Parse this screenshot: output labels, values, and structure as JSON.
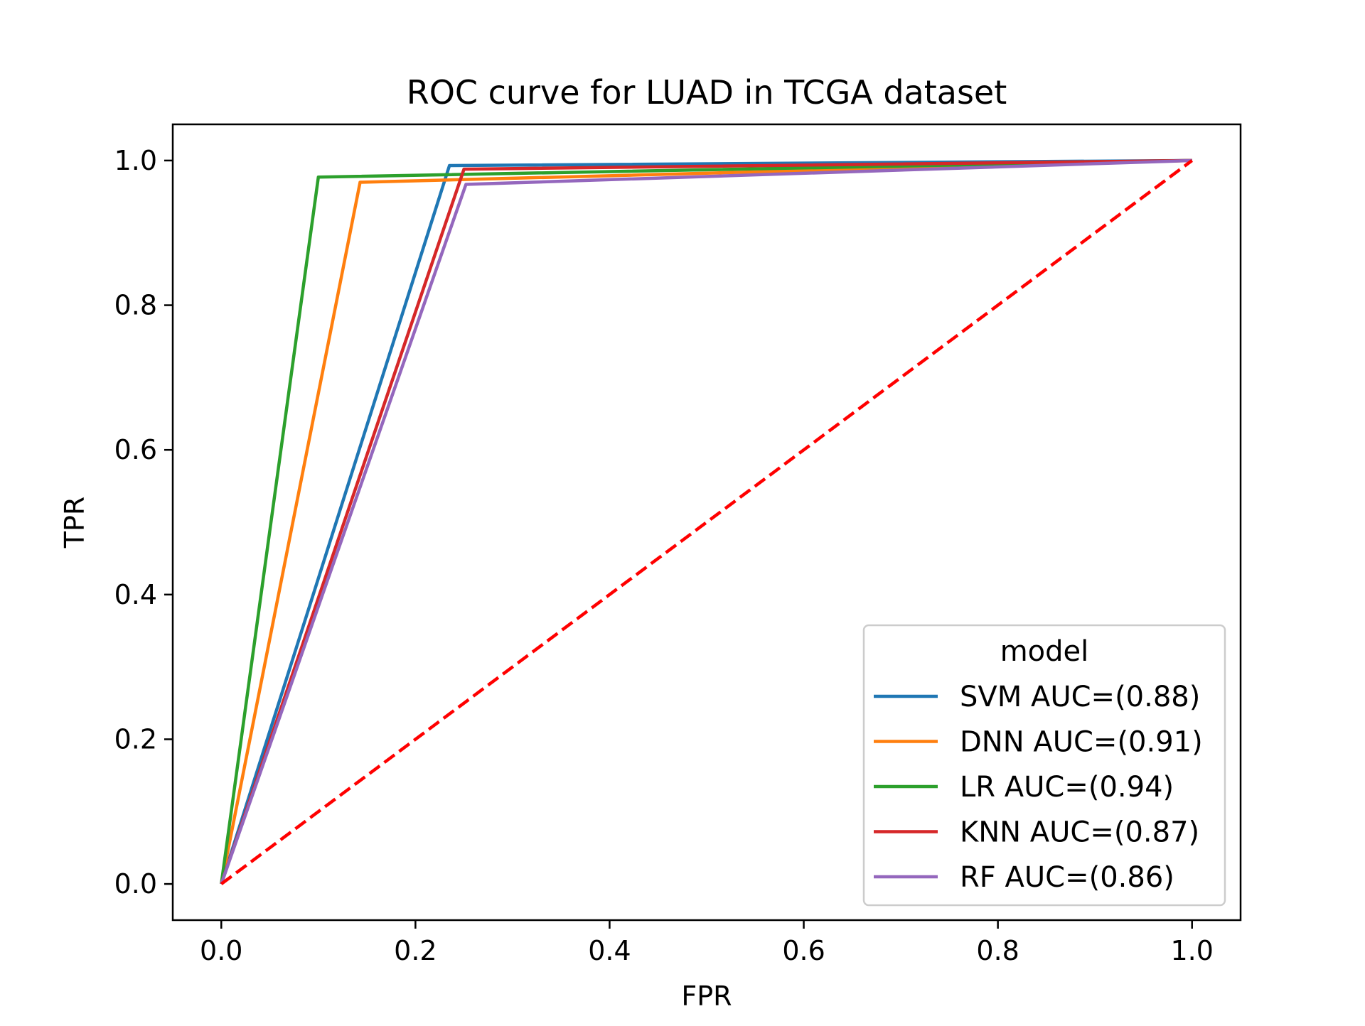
{
  "chart_data": {
    "type": "line",
    "title": "ROC curve for LUAD in TCGA dataset",
    "xlabel": "FPR",
    "ylabel": "TPR",
    "xlim": [
      -0.05,
      1.05
    ],
    "ylim": [
      -0.05,
      1.05
    ],
    "xticks": [
      0.0,
      0.2,
      0.4,
      0.6,
      0.8,
      1.0
    ],
    "xtick_labels": [
      "0.0",
      "0.2",
      "0.4",
      "0.6",
      "0.8",
      "1.0"
    ],
    "yticks": [
      0.0,
      0.2,
      0.4,
      0.6,
      0.8,
      1.0
    ],
    "ytick_labels": [
      "0.0",
      "0.2",
      "0.4",
      "0.6",
      "0.8",
      "1.0"
    ],
    "grid": false,
    "legend": {
      "title": "model",
      "placement": "lower right"
    },
    "series": [
      {
        "name": "SVM AUC=(0.88)",
        "color": "#1f77b4",
        "x": [
          0.0,
          0.235,
          1.0
        ],
        "y": [
          0.0,
          0.993,
          1.0
        ]
      },
      {
        "name": "DNN AUC=(0.91)",
        "color": "#ff7f0e",
        "x": [
          0.0,
          0.143,
          1.0
        ],
        "y": [
          0.0,
          0.97,
          1.0
        ]
      },
      {
        "name": "LR AUC=(0.94)",
        "color": "#2ca02c",
        "x": [
          0.0,
          0.1,
          1.0
        ],
        "y": [
          0.0,
          0.977,
          1.0
        ]
      },
      {
        "name": "KNN AUC=(0.87)",
        "color": "#d62728",
        "x": [
          0.0,
          0.25,
          1.0
        ],
        "y": [
          0.0,
          0.988,
          1.0
        ]
      },
      {
        "name": "RF AUC=(0.86)",
        "color": "#9467bd",
        "x": [
          0.0,
          0.252,
          1.0
        ],
        "y": [
          0.0,
          0.967,
          1.0
        ]
      }
    ],
    "reference_line": {
      "style": "dashed",
      "color": "#ff0000",
      "x": [
        0.0,
        1.0
      ],
      "y": [
        0.0,
        1.0
      ]
    }
  }
}
